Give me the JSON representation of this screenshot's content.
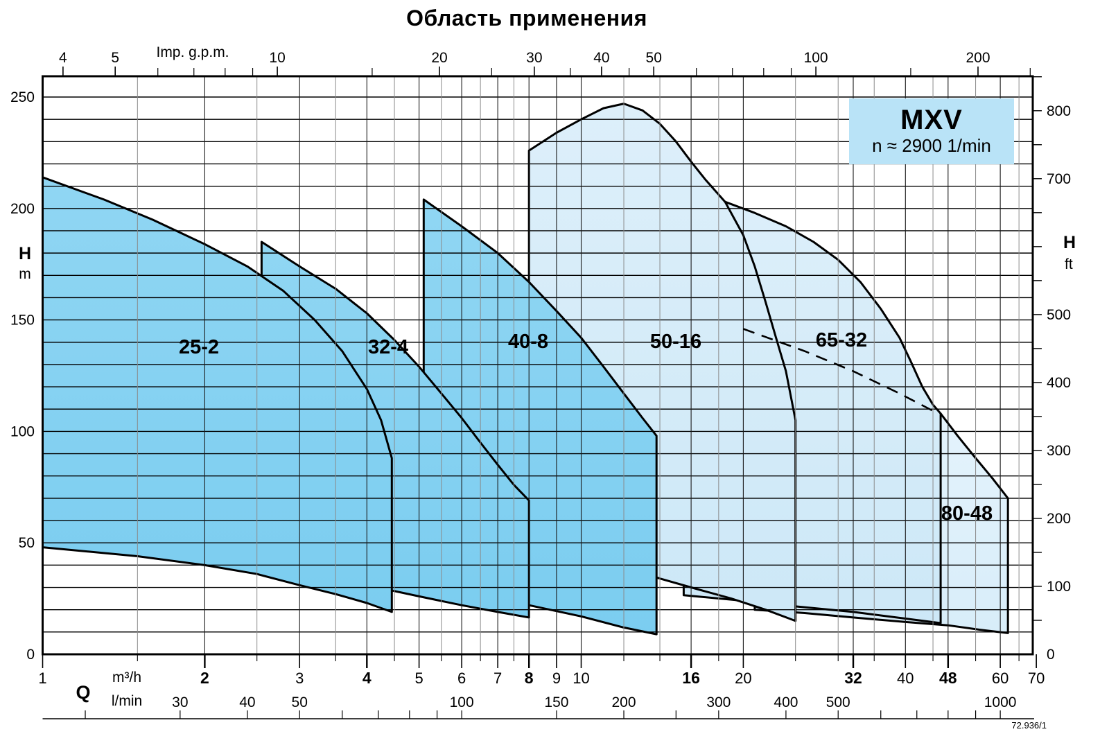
{
  "title": "Область применения",
  "legend": {
    "model": "MXV",
    "speed_line": "n ≈ 2900 1/min",
    "bg": "#b9e3f7"
  },
  "doc_number": "72.936/1",
  "colors": {
    "region_mid_top": "#90d6f3",
    "region_mid_bottom": "#7bcdf0",
    "region_pale_top": "#ddeffa",
    "region_pale_bottom": "#cde8f7",
    "region_palest_top": "#e8f5fd",
    "region_palest_bottom": "#d8edf9",
    "outline": "#000000",
    "grid_horizontal": "#000000",
    "grid_vertical_major": "#1a1a1a",
    "grid_vertical_minor": "#8a8a8a"
  },
  "axes": {
    "top": {
      "label": "Imp. g.p.m.",
      "major_ticks": [
        4,
        5,
        10,
        20,
        30,
        40,
        50,
        100,
        200
      ],
      "minor_ticks": [
        6,
        7,
        8,
        9,
        15,
        25,
        35,
        45,
        60,
        70,
        80,
        90,
        150,
        250
      ]
    },
    "left": {
      "label": "H",
      "unit": "m",
      "ticks": [
        250,
        200,
        150,
        100,
        50,
        0
      ],
      "gridline_step_m": 10
    },
    "right": {
      "label": "H",
      "unit": "ft",
      "labeled_ticks": [
        800,
        700,
        500,
        400,
        300,
        200,
        100,
        0
      ],
      "minor_step_ft": 50
    },
    "bottom_m3h": {
      "axis_letter": "Q",
      "unit": "m³/h",
      "q_range": [
        1,
        70
      ],
      "labeled_ticks": [
        1,
        2,
        3,
        4,
        5,
        6,
        7,
        8,
        9,
        10,
        16,
        20,
        32,
        40,
        48,
        60,
        70
      ],
      "bold_ticks": [
        2,
        4,
        8,
        16,
        32,
        48
      ],
      "minor_ticks": [
        1.5,
        2.5,
        3.5,
        4.5,
        5.5,
        6.5,
        7.5,
        12,
        14,
        18,
        25,
        30,
        35,
        45,
        54,
        65
      ]
    },
    "bottom_lmin": {
      "unit": "l/min",
      "labeled_ticks": [
        30,
        40,
        50,
        100,
        150,
        200,
        300,
        400,
        500,
        1000
      ],
      "ruler_ticks": [
        20,
        30,
        40,
        50,
        60,
        70,
        80,
        90,
        100,
        150,
        200,
        250,
        300,
        400,
        500,
        600,
        700,
        800,
        900,
        1000
      ]
    }
  },
  "chart_data": {
    "type": "area",
    "x_scale": "log",
    "x_unit": "m³/h",
    "y_unit": "m",
    "x_range": [
      1,
      70
    ],
    "y_range_m": [
      0,
      259
    ],
    "note": "Application range envelopes of MXV pump models; outline points are [Q m³/h, H m]",
    "regions": [
      {
        "label": "80-48",
        "tier": "palest",
        "q_range": [
          21,
          62
        ],
        "h_range": [
          9.5,
          140
        ],
        "outline": [
          [
            21,
            140
          ],
          [
            25,
            135
          ],
          [
            30,
            128
          ],
          [
            35,
            121
          ],
          [
            40,
            115
          ],
          [
            43,
            111
          ],
          [
            46.5,
            108
          ],
          [
            50,
            98
          ],
          [
            54,
            88
          ],
          [
            58,
            79
          ],
          [
            62,
            70
          ],
          [
            62,
            9.5
          ],
          [
            55,
            11
          ],
          [
            48,
            13
          ],
          [
            40,
            14.5
          ],
          [
            32,
            16.5
          ],
          [
            26,
            18.5
          ],
          [
            21,
            20
          ]
        ]
      },
      {
        "label": "65-32",
        "tier": "pale",
        "q_range": [
          15.5,
          46.5
        ],
        "h_range": [
          14,
          214
        ],
        "outline": [
          [
            15.5,
            214
          ],
          [
            18.5,
            203
          ],
          [
            21,
            198
          ],
          [
            24,
            192
          ],
          [
            27,
            185
          ],
          [
            30,
            177
          ],
          [
            33,
            167
          ],
          [
            36,
            155
          ],
          [
            39,
            142
          ],
          [
            41,
            131
          ],
          [
            43,
            120
          ],
          [
            45,
            112
          ],
          [
            46.5,
            108
          ],
          [
            46.5,
            14
          ],
          [
            40,
            16
          ],
          [
            32,
            19
          ],
          [
            25,
            21.5
          ],
          [
            20,
            24
          ],
          [
            15.5,
            26.5
          ]
        ]
      },
      {
        "label": "50-16",
        "tier": "pale",
        "q_range": [
          8,
          25
        ],
        "h_range": [
          15,
          247
        ],
        "outline": [
          [
            8,
            226
          ],
          [
            9,
            234
          ],
          [
            10,
            240
          ],
          [
            11,
            245
          ],
          [
            12,
            247
          ],
          [
            13,
            244
          ],
          [
            14,
            238
          ],
          [
            15,
            230
          ],
          [
            16,
            221
          ],
          [
            17,
            213
          ],
          [
            18.5,
            203
          ],
          [
            20,
            188
          ],
          [
            21,
            174
          ],
          [
            22,
            158
          ],
          [
            23,
            142
          ],
          [
            24,
            127
          ],
          [
            25,
            105
          ],
          [
            25,
            15
          ],
          [
            22,
            20
          ],
          [
            19,
            25
          ],
          [
            16,
            30
          ],
          [
            14,
            34
          ],
          [
            12,
            39
          ],
          [
            10,
            44
          ],
          [
            8,
            49
          ]
        ]
      },
      {
        "label": "40-8",
        "tier": "mid",
        "q_range": [
          5.1,
          13.8
        ],
        "h_range": [
          9,
          204
        ],
        "outline": [
          [
            5.1,
            204
          ],
          [
            6,
            192
          ],
          [
            7,
            180
          ],
          [
            8,
            167
          ],
          [
            9,
            154
          ],
          [
            10,
            142
          ],
          [
            11,
            129
          ],
          [
            12,
            117
          ],
          [
            13,
            106
          ],
          [
            13.8,
            98
          ],
          [
            13.8,
            9
          ],
          [
            12,
            12
          ],
          [
            10,
            17
          ],
          [
            8,
            22
          ],
          [
            6.5,
            25
          ],
          [
            5.1,
            27
          ]
        ]
      },
      {
        "label": "32-4",
        "tier": "mid",
        "q_range": [
          2.55,
          8
        ],
        "h_range": [
          16.5,
          185
        ],
        "outline": [
          [
            2.55,
            185
          ],
          [
            3,
            174
          ],
          [
            3.5,
            164
          ],
          [
            4,
            153
          ],
          [
            4.5,
            141
          ],
          [
            5,
            129
          ],
          [
            5.5,
            117
          ],
          [
            6,
            106
          ],
          [
            6.5,
            95
          ],
          [
            7,
            85
          ],
          [
            7.5,
            76
          ],
          [
            8,
            69
          ],
          [
            8,
            16.5
          ],
          [
            7,
            19
          ],
          [
            6,
            22
          ],
          [
            5,
            26
          ],
          [
            4,
            31
          ],
          [
            3,
            36
          ],
          [
            2.55,
            39
          ]
        ]
      },
      {
        "label": "25-2",
        "tier": "mid",
        "q_range": [
          1,
          4.45
        ],
        "h_range": [
          19,
          214
        ],
        "outline": [
          [
            1,
            214
          ],
          [
            1.3,
            204
          ],
          [
            1.6,
            195
          ],
          [
            2,
            184
          ],
          [
            2.4,
            174
          ],
          [
            2.8,
            163
          ],
          [
            3.2,
            150
          ],
          [
            3.6,
            136
          ],
          [
            4,
            119
          ],
          [
            4.25,
            105
          ],
          [
            4.45,
            88
          ],
          [
            4.45,
            19
          ],
          [
            4,
            23
          ],
          [
            3.5,
            27
          ],
          [
            3,
            31
          ],
          [
            2.5,
            36
          ],
          [
            2,
            40
          ],
          [
            1.5,
            44
          ],
          [
            1,
            48
          ]
        ]
      }
    ],
    "dashed_guide": [
      [
        20,
        146
      ],
      [
        26,
        136
      ],
      [
        32,
        127
      ],
      [
        39,
        117
      ],
      [
        46,
        108
      ]
    ]
  }
}
